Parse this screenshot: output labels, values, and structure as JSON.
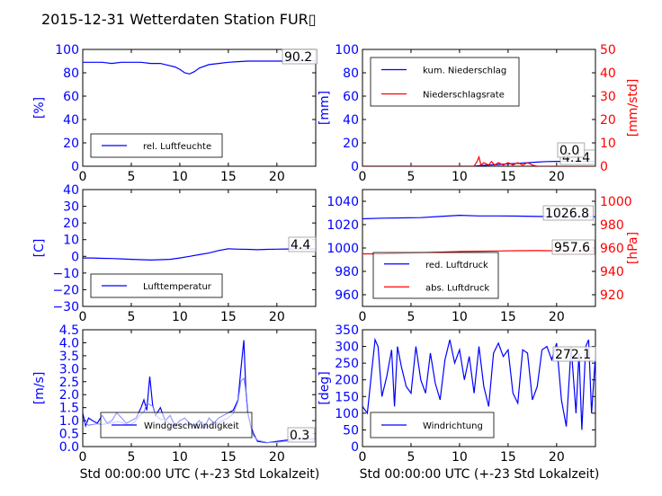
{
  "title": "2015-12-31 Wetterdaten Station FUR▯",
  "xlabel": "Std 00:00:00 UTC (+-23 Std Lokalzeit)",
  "colors": {
    "blue": "#0000ff",
    "red": "#ff0000",
    "light_blue": "#8080ff"
  },
  "chart_data": [
    {
      "type": "line",
      "ylabel": "[%]",
      "xlim": [
        0,
        24
      ],
      "ylim": [
        0,
        100
      ],
      "xticks": [
        "0",
        "5",
        "10",
        "15",
        "20"
      ],
      "yticks": [
        "0",
        "20",
        "40",
        "60",
        "80",
        "100"
      ],
      "legend": {
        "placement": "lower-left",
        "entries": [
          "rel. Luftfeuchte"
        ]
      },
      "annotations": [
        "90.2"
      ],
      "series": [
        {
          "name": "rel. Luftfeuchte",
          "color": "#0000ff",
          "x": [
            0,
            1,
            2,
            3,
            4,
            5,
            6,
            7,
            8,
            9,
            9.5,
            10,
            10.5,
            11,
            11.5,
            12,
            13,
            14,
            15,
            16,
            17,
            18,
            19,
            20,
            21,
            22,
            23,
            24
          ],
          "y": [
            89,
            89,
            89,
            88,
            89,
            89,
            89,
            88,
            88,
            86,
            85,
            83,
            80,
            79,
            81,
            84,
            87,
            88,
            89,
            89.5,
            90,
            90,
            90,
            90,
            90,
            90.2,
            90.2,
            90.2
          ]
        }
      ]
    },
    {
      "type": "line",
      "ylabel": "[mm]",
      "ylabel_right": "[mm/std]",
      "xlim": [
        0,
        24
      ],
      "ylim": [
        0,
        100
      ],
      "ylim_right": [
        0,
        50
      ],
      "xticks": [
        "0",
        "5",
        "10",
        "15",
        "20"
      ],
      "yticks": [
        "0",
        "20",
        "40",
        "60",
        "80",
        "100"
      ],
      "yticks_right": [
        "0",
        "10",
        "20",
        "30",
        "40",
        "50"
      ],
      "legend": {
        "placement": "top-left",
        "entries": [
          "kum. Niederschlag",
          "Niederschlagsrate"
        ]
      },
      "annotations": [
        "4.14",
        "0.0"
      ],
      "series": [
        {
          "name": "kum. Niederschlag",
          "color": "#0000ff",
          "axis": "left",
          "x": [
            0,
            11.5,
            12,
            13,
            14,
            15,
            16,
            17,
            18,
            19,
            20,
            21,
            22,
            23,
            24
          ],
          "y": [
            0,
            0,
            0.5,
            1,
            1.5,
            2,
            2.5,
            3,
            3.5,
            4,
            4.14,
            4.14,
            4.14,
            4.14,
            4.14
          ]
        },
        {
          "name": "Niederschlagsrate",
          "color": "#ff0000",
          "axis": "right",
          "x": [
            0,
            11.5,
            11.8,
            12,
            12.2,
            12.5,
            13,
            13.3,
            13.6,
            14,
            14.5,
            15,
            15.5,
            16,
            16.5,
            17,
            17.5,
            18,
            19,
            24
          ],
          "y": [
            0,
            0,
            2,
            4,
            0.5,
            1.5,
            0.5,
            2,
            0.5,
            1.5,
            0.5,
            1.5,
            0.5,
            1.5,
            0.5,
            1.5,
            0.5,
            0,
            0,
            0
          ]
        }
      ]
    },
    {
      "type": "line",
      "ylabel": "[C]",
      "xlim": [
        0,
        24
      ],
      "ylim": [
        -30,
        40
      ],
      "xticks": [
        "0",
        "5",
        "10",
        "15",
        "20"
      ],
      "yticks": [
        "−30",
        "−20",
        "−10",
        "0",
        "10",
        "20",
        "30",
        "40"
      ],
      "legend": {
        "placement": "lower-left",
        "entries": [
          "Lufttemperatur"
        ]
      },
      "annotations": [
        "4.4"
      ],
      "series": [
        {
          "name": "Lufttemperatur",
          "color": "#0000ff",
          "x": [
            0,
            1,
            2,
            3,
            4,
            5,
            6,
            7,
            8,
            9,
            10,
            11,
            12,
            13,
            14,
            15,
            16,
            17,
            18,
            19,
            20,
            21,
            22,
            23,
            24
          ],
          "y": [
            -1,
            -1,
            -1.2,
            -1.3,
            -1.5,
            -1.8,
            -2.0,
            -2.2,
            -2.0,
            -1.8,
            -1,
            0,
            1,
            2,
            3.5,
            4.5,
            4.3,
            4.2,
            4,
            4.2,
            4.3,
            4.4,
            4.4,
            4.4,
            4.4
          ]
        }
      ]
    },
    {
      "type": "line",
      "ylabel_right": "[hPa]",
      "xlim": [
        0,
        24
      ],
      "ylim": [
        950,
        1050
      ],
      "ylim_right": [
        910,
        1010
      ],
      "xticks": [
        "0",
        "5",
        "10",
        "15",
        "20"
      ],
      "yticks": [
        "960",
        "980",
        "1000",
        "1020",
        "1040"
      ],
      "yticks_right": [
        "920",
        "940",
        "960",
        "980",
        "1000"
      ],
      "legend": {
        "placement": "lower-left",
        "entries": [
          "red. Luftdruck",
          "abs. Luftdruck"
        ]
      },
      "annotations": [
        "1026.8",
        "957.6"
      ],
      "series": [
        {
          "name": "red. Luftdruck",
          "color": "#0000ff",
          "axis": "left",
          "x": [
            0,
            2,
            4,
            6,
            8,
            10,
            12,
            14,
            16,
            18,
            20,
            22,
            24
          ],
          "y": [
            1025,
            1025.5,
            1025.8,
            1026,
            1027,
            1028,
            1027.5,
            1027.5,
            1027.3,
            1027,
            1027,
            1026.8,
            1026.8
          ]
        },
        {
          "name": "abs. Luftdruck",
          "color": "#ff0000",
          "axis": "right",
          "x": [
            0,
            2,
            4,
            6,
            8,
            10,
            12,
            14,
            16,
            18,
            20,
            22,
            24
          ],
          "y": [
            955,
            955,
            955.5,
            956,
            956.5,
            957,
            957.2,
            957.5,
            957.7,
            957.8,
            957.6,
            957.6,
            957.6
          ]
        }
      ]
    },
    {
      "type": "line",
      "ylabel": "[m/s]",
      "xlim": [
        0,
        24
      ],
      "ylim": [
        0,
        4.5
      ],
      "xticks": [
        "0",
        "5",
        "10",
        "15",
        "20"
      ],
      "yticks": [
        "0.0",
        "0.5",
        "1.0",
        "1.5",
        "2.0",
        "2.5",
        "3.0",
        "3.5",
        "4.0",
        "4.5"
      ],
      "legend": {
        "placement": "lower-center",
        "entries": [
          "Windgeschwindigkeit"
        ]
      },
      "annotations": [
        "0.3"
      ],
      "series": [
        {
          "name": "Windgeschwindigkeit",
          "color": "#0000ff",
          "x": [
            0,
            0.3,
            0.6,
            1,
            1.5,
            2,
            2.5,
            3,
            3.5,
            4,
            4.5,
            5,
            5.5,
            6,
            6.3,
            6.6,
            6.9,
            7.2,
            7.5,
            8,
            8.5,
            9,
            9.5,
            10,
            10.5,
            11,
            11.5,
            12,
            12.5,
            13,
            13.5,
            14,
            14.5,
            15,
            15.5,
            16,
            16.3,
            16.6,
            16.8,
            17,
            17.3,
            17.6,
            18,
            19,
            20,
            21,
            22,
            23,
            24
          ],
          "y": [
            1.3,
            0.8,
            1.1,
            1.0,
            0.9,
            1.2,
            0.9,
            1.0,
            1.3,
            1.1,
            0.9,
            1.0,
            1.1,
            1.5,
            1.8,
            1.4,
            2.7,
            1.6,
            1.2,
            1.5,
            1.0,
            1.2,
            0.8,
            1.0,
            1.1,
            0.9,
            0.8,
            1.0,
            0.7,
            1.1,
            0.9,
            1.1,
            1.2,
            1.3,
            1.4,
            1.8,
            3.0,
            4.1,
            2.2,
            1.3,
            0.8,
            0.5,
            0.2,
            0.15,
            0.2,
            0.25,
            0.3,
            0.3,
            0.3
          ]
        }
      ]
    },
    {
      "type": "line",
      "ylabel": "[deg]",
      "xlim": [
        0,
        24
      ],
      "ylim": [
        0,
        350
      ],
      "xticks": [
        "0",
        "5",
        "10",
        "15",
        "20"
      ],
      "yticks": [
        "0",
        "50",
        "100",
        "150",
        "200",
        "250",
        "300",
        "350"
      ],
      "legend": {
        "placement": "lower-left",
        "entries": [
          "Windrichtung"
        ]
      },
      "annotations": [
        "272.1"
      ],
      "series": [
        {
          "name": "Windrichtung",
          "color": "#0000ff",
          "x": [
            0,
            0.5,
            1,
            1.3,
            1.6,
            2,
            2.5,
            3,
            3.3,
            3.6,
            4,
            4.5,
            5,
            5.5,
            6,
            6.5,
            7,
            7.5,
            8,
            8.5,
            9,
            9.5,
            10,
            10.5,
            11,
            11.5,
            12,
            12.5,
            13,
            13.5,
            14,
            14.5,
            15,
            15.5,
            16,
            16.5,
            17,
            17.5,
            18,
            18.5,
            19,
            19.5,
            20,
            20.5,
            21,
            21.5,
            22,
            22.3,
            22.6,
            23,
            23.3,
            23.6,
            24
          ],
          "y": [
            120,
            100,
            240,
            320,
            300,
            150,
            210,
            290,
            120,
            300,
            240,
            180,
            160,
            300,
            200,
            160,
            280,
            190,
            140,
            260,
            320,
            250,
            290,
            200,
            270,
            160,
            300,
            180,
            120,
            280,
            310,
            270,
            290,
            160,
            130,
            290,
            280,
            140,
            180,
            290,
            300,
            260,
            310,
            140,
            60,
            300,
            100,
            280,
            50,
            300,
            320,
            100,
            272
          ]
        }
      ]
    }
  ]
}
